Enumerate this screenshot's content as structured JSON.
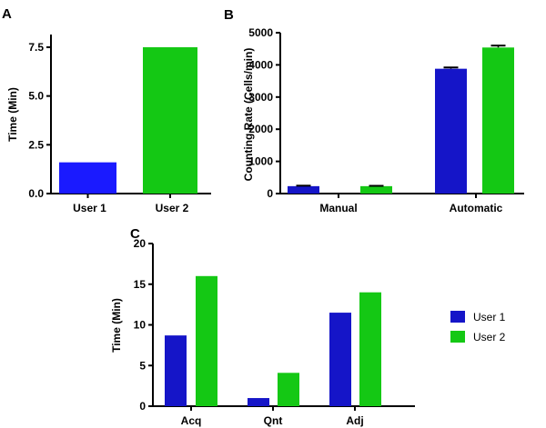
{
  "colors": {
    "user1": "#1515c8",
    "user1_bright": "#1a1aff",
    "user2": "#14c814",
    "axis": "#000000"
  },
  "chart_data": [
    {
      "panel": "A",
      "type": "bar",
      "categories": [
        "User 1",
        "User 2"
      ],
      "values": [
        1.6,
        7.5
      ],
      "ylabel": "Time (Min)",
      "yticks": [
        "0.0",
        "2.5",
        "5.0",
        "7.5"
      ],
      "ylim": [
        0,
        8.15
      ],
      "bar_colors": [
        "#1a1aff",
        "#14c814"
      ]
    },
    {
      "panel": "B",
      "type": "bar",
      "categories": [
        "Manual",
        "Automatic"
      ],
      "series": [
        {
          "name": "User 1",
          "values": [
            230,
            3880
          ],
          "errors": [
            15,
            40
          ]
        },
        {
          "name": "User 2",
          "values": [
            230,
            4540
          ],
          "errors": [
            10,
            60
          ]
        }
      ],
      "ylabel": "Counting Rate (Cells/min)",
      "yticks": [
        "0",
        "1000",
        "2000",
        "3000",
        "4000",
        "5000"
      ],
      "ylim": [
        0,
        5000
      ]
    },
    {
      "panel": "C",
      "type": "bar",
      "categories": [
        "Acq",
        "Qnt",
        "Adj"
      ],
      "series": [
        {
          "name": "User 1",
          "values": [
            8.7,
            1.0,
            11.5
          ]
        },
        {
          "name": "User 2",
          "values": [
            16.0,
            4.1,
            14.0
          ]
        }
      ],
      "ylabel": "Time (Min)",
      "yticks": [
        "0",
        "5",
        "10",
        "15",
        "20"
      ],
      "ylim": [
        0,
        20
      ],
      "legend": {
        "position": "right",
        "entries": [
          "User 1",
          "User 2"
        ]
      }
    }
  ]
}
